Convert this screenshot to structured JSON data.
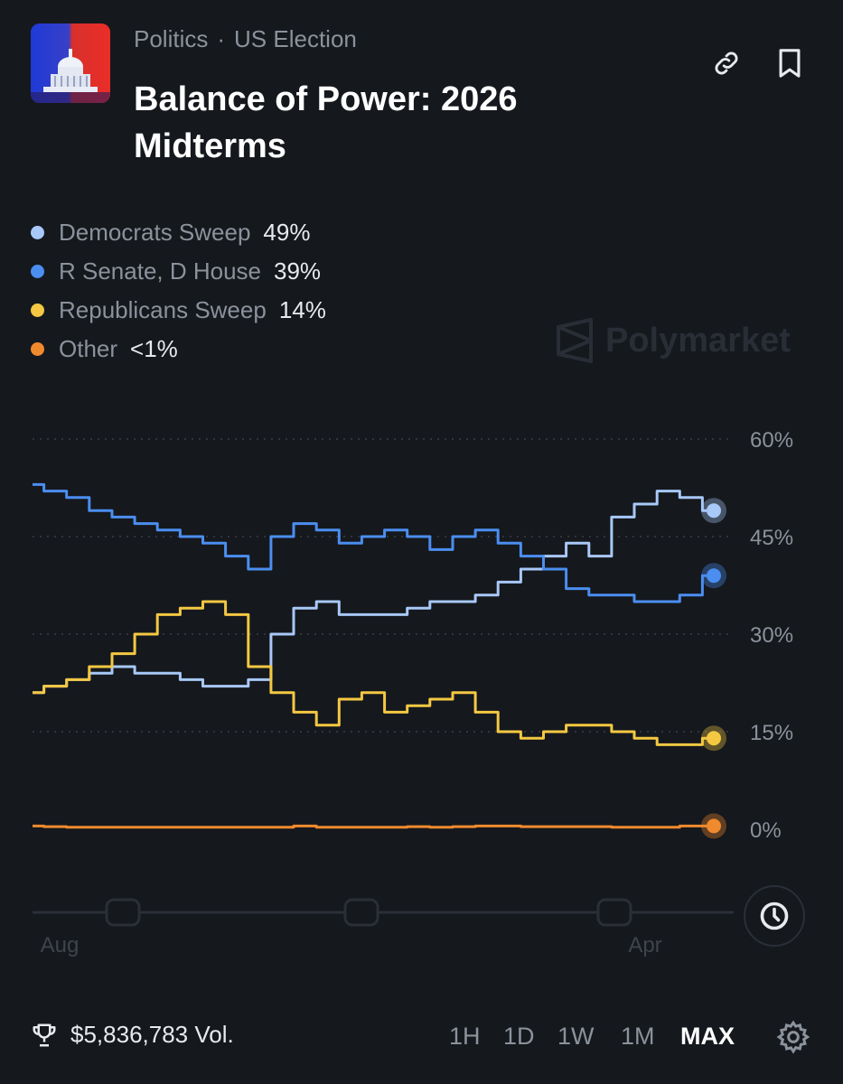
{
  "header": {
    "category": "Politics",
    "subcategory": "US Election",
    "title": "Balance of Power: 2026 Midterms"
  },
  "icons": {
    "link": "link-icon",
    "bookmark": "bookmark-icon",
    "clock": "clock-icon",
    "trophy": "trophy-icon",
    "settings": "gear-icon"
  },
  "watermark": "Polymarket",
  "legend": [
    {
      "label": "Democrats Sweep",
      "value": "49%",
      "color": "#a8c8f8"
    },
    {
      "label": "R Senate, D House",
      "value": "39%",
      "color": "#4b8ef0"
    },
    {
      "label": "Republicans Sweep",
      "value": "14%",
      "color": "#f4c842"
    },
    {
      "label": "Other",
      "value": "<1%",
      "color": "#f08a2e"
    }
  ],
  "chart_data": {
    "type": "line",
    "x_ticks": [
      "Aug",
      "Apr"
    ],
    "y_ticks": [
      "60%",
      "45%",
      "30%",
      "15%",
      "0%"
    ],
    "ylim": [
      0,
      60
    ],
    "grid": true,
    "grid_style": "dotted",
    "legend_position": "top-left",
    "series": [
      {
        "name": "Democrats Sweep",
        "color": "#a8c8f8",
        "values": [
          21,
          22,
          23,
          24,
          25,
          24,
          24,
          23,
          22,
          22,
          23,
          30,
          34,
          35,
          33,
          33,
          33,
          34,
          35,
          35,
          36,
          38,
          40,
          42,
          44,
          42,
          48,
          50,
          52,
          51,
          49
        ]
      },
      {
        "name": "R Senate, D House",
        "color": "#4b8ef0",
        "values": [
          53,
          52,
          51,
          49,
          48,
          47,
          46,
          45,
          44,
          42,
          40,
          45,
          47,
          46,
          44,
          45,
          46,
          45,
          43,
          45,
          46,
          44,
          42,
          40,
          37,
          36,
          36,
          35,
          35,
          36,
          39
        ]
      },
      {
        "name": "Republicans Sweep",
        "color": "#f4c842",
        "values": [
          21,
          22,
          23,
          25,
          27,
          30,
          33,
          34,
          35,
          33,
          25,
          21,
          18,
          16,
          20,
          21,
          18,
          19,
          20,
          21,
          18,
          15,
          14,
          15,
          16,
          16,
          15,
          14,
          13,
          13,
          14
        ]
      },
      {
        "name": "Other",
        "color": "#f08a2e",
        "values": [
          0.5,
          0.4,
          0.3,
          0.3,
          0.3,
          0.3,
          0.3,
          0.3,
          0.3,
          0.3,
          0.3,
          0.3,
          0.5,
          0.3,
          0.3,
          0.3,
          0.3,
          0.4,
          0.3,
          0.4,
          0.5,
          0.5,
          0.4,
          0.4,
          0.4,
          0.4,
          0.3,
          0.3,
          0.3,
          0.5,
          0.5
        ]
      }
    ]
  },
  "footer": {
    "volume": "$5,836,783 Vol.",
    "ranges": [
      "1H",
      "1D",
      "1W",
      "1M",
      "MAX"
    ],
    "active_range": "MAX"
  }
}
